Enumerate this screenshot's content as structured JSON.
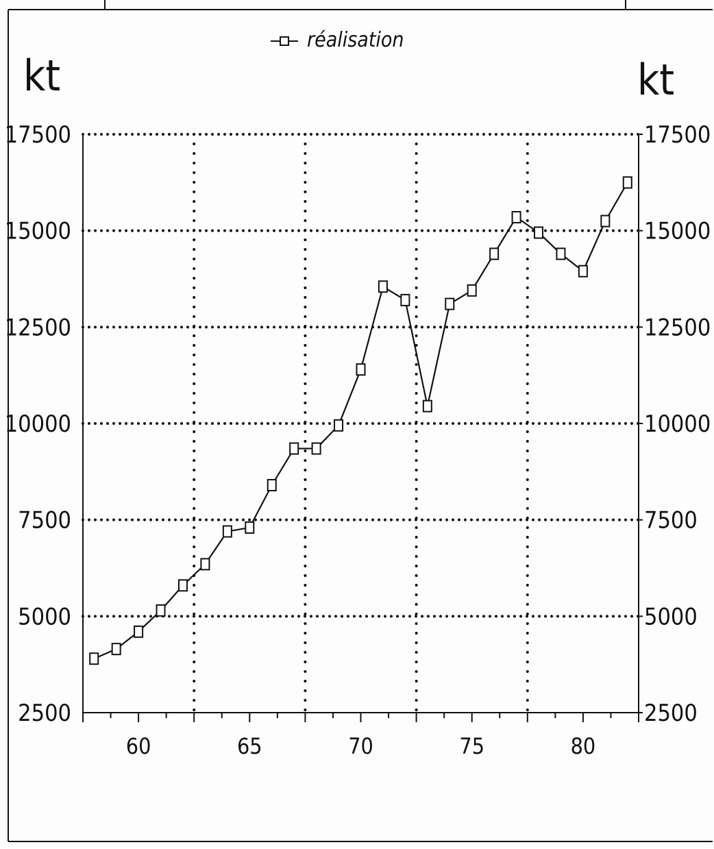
{
  "chart_data": {
    "type": "line",
    "legend": {
      "label": "réalisation",
      "placement": "top-center",
      "marker": "square"
    },
    "y_unit_left": "kt",
    "y_unit_right": "kt",
    "ylim": [
      2500,
      17500
    ],
    "yticks": [
      2500,
      5000,
      7500,
      10000,
      12500,
      15000,
      17500
    ],
    "ytick_labels": [
      "2500",
      "5000",
      "7500",
      "10000",
      "12500",
      "15000",
      "17500"
    ],
    "xlim": [
      57.5,
      82.5
    ],
    "xticks": [
      60,
      65,
      70,
      75,
      80
    ],
    "xtick_labels": [
      "60",
      "65",
      "70",
      "75",
      "80"
    ],
    "grid": "dotted",
    "series": [
      {
        "name": "réalisation",
        "x": [
          58,
          59,
          60,
          61,
          62,
          63,
          64,
          65,
          66,
          67,
          68,
          69,
          70,
          71,
          72,
          73,
          74,
          75,
          76,
          77,
          78,
          79,
          80,
          81,
          82
        ],
        "y": [
          3900,
          4150,
          4600,
          5150,
          5800,
          6350,
          7200,
          7300,
          8400,
          9350,
          9350,
          9950,
          11400,
          13550,
          13200,
          10450,
          13100,
          13450,
          14400,
          15350,
          14950,
          14400,
          13950,
          15250,
          16250
        ]
      }
    ]
  }
}
